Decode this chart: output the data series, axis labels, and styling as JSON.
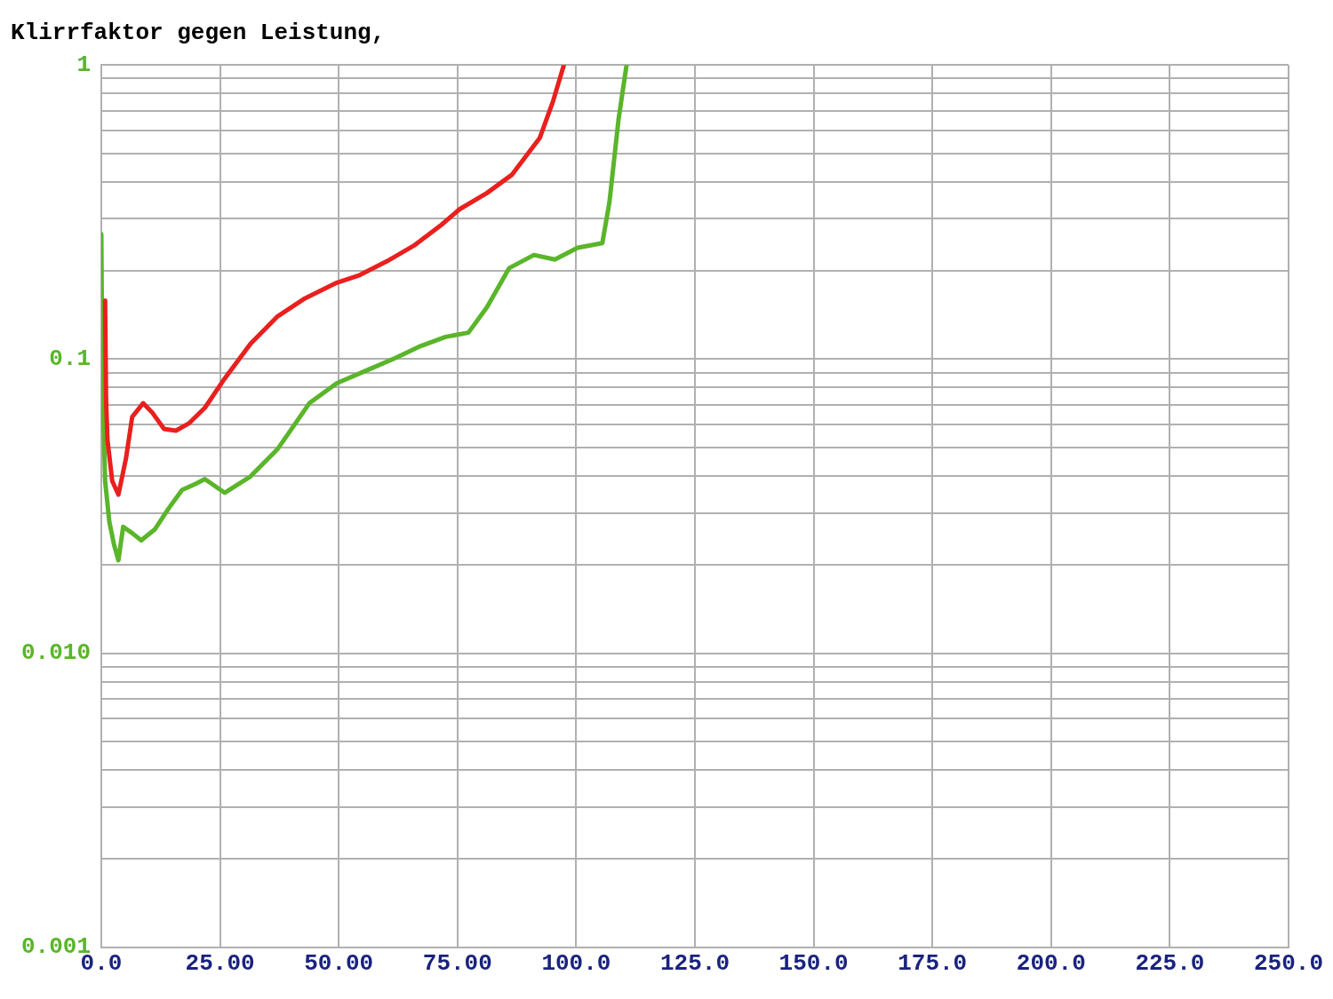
{
  "chart_data": {
    "type": "line",
    "title": "Klirrfaktor gegen Leistung,",
    "log": "y",
    "grid": true,
    "legend": false,
    "marker": "none",
    "line_style": "solid",
    "xlim": [
      0,
      250
    ],
    "xticks": [
      {
        "value": 0,
        "label": "0.0"
      },
      {
        "value": 25,
        "label": "25.00"
      },
      {
        "value": 50,
        "label": "50.00"
      },
      {
        "value": 75,
        "label": "75.00"
      },
      {
        "value": 100,
        "label": "100.0"
      },
      {
        "value": 125,
        "label": "125.0"
      },
      {
        "value": 150,
        "label": "150.0"
      },
      {
        "value": 175,
        "label": "175.0"
      },
      {
        "value": 200,
        "label": "200.0"
      },
      {
        "value": 225,
        "label": "225.0"
      },
      {
        "value": 250,
        "label": "250.0"
      }
    ],
    "ylim": [
      0.001,
      1
    ],
    "yticks": [
      {
        "value": 0.001,
        "label": "0.001"
      },
      {
        "value": 0.002,
        "label": null
      },
      {
        "value": 0.003,
        "label": null
      },
      {
        "value": 0.004,
        "label": null
      },
      {
        "value": 0.005,
        "label": null
      },
      {
        "value": 0.006,
        "label": null
      },
      {
        "value": 0.007,
        "label": null
      },
      {
        "value": 0.008,
        "label": null
      },
      {
        "value": 0.009,
        "label": null
      },
      {
        "value": 0.01,
        "label": "0.010"
      },
      {
        "value": 0.02,
        "label": null
      },
      {
        "value": 0.03,
        "label": null
      },
      {
        "value": 0.04,
        "label": null
      },
      {
        "value": 0.05,
        "label": null
      },
      {
        "value": 0.06,
        "label": null
      },
      {
        "value": 0.07,
        "label": null
      },
      {
        "value": 0.08,
        "label": null
      },
      {
        "value": 0.09,
        "label": null
      },
      0.1,
      {
        "value": 0.2,
        "label": null
      },
      {
        "value": 0.3,
        "label": null
      },
      {
        "value": 0.4,
        "label": null
      },
      {
        "value": 0.5,
        "label": null
      },
      {
        "value": 0.6,
        "label": null
      },
      {
        "value": 0.7,
        "label": null
      },
      {
        "value": 0.8,
        "label": null
      },
      {
        "value": 0.9,
        "label": null
      },
      1
    ],
    "series": [
      {
        "color": "#e8201e",
        "x": [
          0.8,
          1.0,
          1.3,
          2.3,
          3.6,
          5.2,
          6.5,
          8.8,
          10.7,
          13.2,
          15.7,
          18.4,
          21.8,
          25.7,
          31.4,
          37.1,
          42.9,
          49.6,
          54.4,
          60.1,
          65.8,
          71.6,
          75.4,
          81.2,
          86.5,
          92.3,
          95.1,
          97.4
        ],
        "values": [
          0.158,
          0.073,
          0.053,
          0.0385,
          0.0346,
          0.046,
          0.0636,
          0.0708,
          0.0659,
          0.0579,
          0.0571,
          0.0604,
          0.0683,
          0.0847,
          0.1127,
          0.1397,
          0.161,
          0.182,
          0.193,
          0.215,
          0.243,
          0.286,
          0.323,
          0.367,
          0.424,
          0.564,
          0.751,
          1.0
        ]
      },
      {
        "color": "#5ab52a",
        "x": [
          0,
          0.2,
          0.8,
          1.7,
          2.7,
          3.6,
          4.6,
          6.5,
          8.4,
          11.3,
          14.2,
          17.0,
          19.9,
          21.8,
          26.0,
          31.4,
          37.1,
          43.8,
          49.6,
          56.3,
          62.0,
          66.8,
          72.5,
          77.3,
          81.2,
          85.9,
          91.1,
          95.5,
          100.3,
          105.5,
          107.0,
          108.9,
          110.6
        ],
        "values": [
          0.266,
          0.0877,
          0.0385,
          0.0279,
          0.0233,
          0.0207,
          0.0269,
          0.0256,
          0.0242,
          0.0264,
          0.0311,
          0.0359,
          0.0377,
          0.0391,
          0.0351,
          0.0399,
          0.0494,
          0.0708,
          0.0828,
          0.0922,
          0.101,
          0.11,
          0.119,
          0.123,
          0.15,
          0.204,
          0.226,
          0.218,
          0.239,
          0.248,
          0.342,
          0.651,
          1.0
        ]
      }
    ]
  }
}
